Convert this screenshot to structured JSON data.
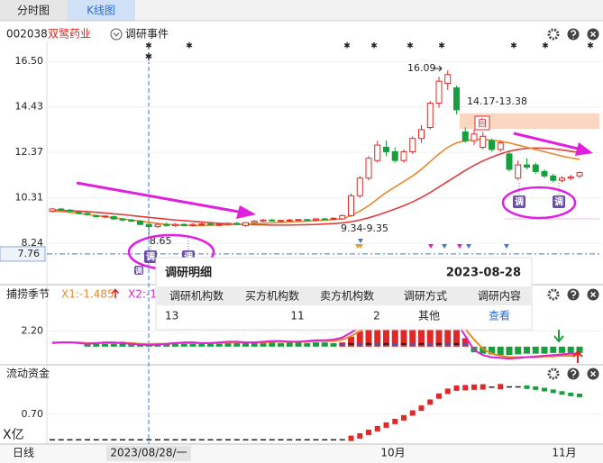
{
  "tabs": [
    "分时图",
    "K线图"
  ],
  "header": {
    "code": "002038",
    "name": "双鹭药业",
    "event_menu": "调研事件"
  },
  "main_chart": {
    "ylim": [
      7.43,
      17.24
    ],
    "yticks": [
      {
        "value": 16.5,
        "label": "16.50"
      },
      14.43,
      12.37,
      10.31,
      8.24
    ],
    "last_price": 7.76,
    "low_label": 8.65,
    "high_label": 16.09,
    "range_label_high": "14.17-13.38",
    "range_label_low": "9.34-9.35",
    "event_icon": "调",
    "self_icon": "自",
    "candles": [
      [
        9.7,
        9.85,
        9.65,
        9.8
      ],
      [
        9.8,
        9.85,
        9.7,
        9.75
      ],
      [
        9.75,
        9.8,
        9.65,
        9.7
      ],
      [
        9.65,
        9.7,
        9.55,
        9.6
      ],
      [
        9.6,
        9.65,
        9.5,
        9.55
      ],
      [
        9.5,
        9.55,
        9.42,
        9.45
      ],
      [
        9.45,
        9.5,
        9.38,
        9.48
      ],
      [
        9.45,
        9.5,
        9.3,
        9.35
      ],
      [
        9.35,
        9.4,
        9.22,
        9.3
      ],
      [
        9.3,
        9.35,
        9.2,
        9.25
      ],
      [
        9.25,
        9.3,
        9.05,
        9.1
      ],
      [
        9.1,
        9.2,
        8.65,
        9.0
      ],
      [
        9.0,
        9.15,
        8.95,
        9.1
      ],
      [
        9.1,
        9.2,
        9.0,
        9.05
      ],
      [
        9.05,
        9.15,
        9.0,
        9.1
      ],
      [
        9.1,
        9.15,
        9.02,
        9.05
      ],
      [
        9.05,
        9.15,
        9.0,
        9.1
      ],
      [
        9.1,
        9.2,
        9.05,
        9.12
      ],
      [
        9.12,
        9.18,
        9.05,
        9.08
      ],
      [
        9.08,
        9.15,
        9.02,
        9.1
      ],
      [
        9.1,
        9.2,
        9.05,
        9.15
      ],
      [
        9.15,
        9.22,
        9.08,
        9.1
      ],
      [
        9.05,
        9.2,
        9.0,
        9.18
      ],
      [
        9.18,
        9.3,
        9.12,
        9.25
      ],
      [
        9.25,
        9.35,
        9.2,
        9.3
      ],
      [
        9.3,
        9.35,
        9.22,
        9.26
      ],
      [
        9.26,
        9.3,
        9.2,
        9.28
      ],
      [
        9.28,
        9.36,
        9.22,
        9.3
      ],
      [
        9.3,
        9.34,
        9.25,
        9.32
      ],
      [
        9.32,
        9.36,
        9.26,
        9.3
      ],
      [
        9.3,
        9.38,
        9.25,
        9.35
      ],
      [
        9.35,
        9.4,
        9.3,
        9.34
      ],
      [
        9.34,
        9.42,
        9.3,
        9.38
      ],
      [
        9.35,
        9.55,
        9.3,
        9.5
      ],
      [
        9.5,
        10.5,
        9.45,
        10.4
      ],
      [
        10.4,
        11.3,
        10.3,
        11.2
      ],
      [
        11.2,
        12.2,
        11.1,
        12.1
      ],
      [
        12.0,
        12.9,
        11.9,
        12.7
      ],
      [
        12.6,
        12.9,
        12.2,
        12.4
      ],
      [
        12.4,
        12.6,
        11.9,
        12.0
      ],
      [
        12.0,
        12.5,
        11.9,
        12.4
      ],
      [
        12.4,
        13.1,
        12.3,
        13.0
      ],
      [
        13.0,
        13.6,
        12.8,
        13.4
      ],
      [
        13.5,
        14.7,
        13.4,
        14.6
      ],
      [
        14.6,
        15.8,
        14.4,
        15.6
      ],
      [
        15.5,
        16.09,
        15.2,
        15.9
      ],
      [
        15.3,
        15.4,
        14.1,
        14.3
      ],
      [
        13.3,
        13.5,
        12.8,
        12.9
      ],
      [
        12.9,
        13.4,
        12.7,
        13.2
      ],
      [
        12.6,
        13.3,
        12.5,
        13.1
      ],
      [
        12.9,
        13.0,
        12.4,
        12.5
      ],
      [
        12.5,
        12.9,
        12.4,
        12.8
      ],
      [
        12.3,
        12.4,
        11.5,
        11.6
      ],
      [
        11.2,
        12.0,
        11.1,
        11.8
      ],
      [
        11.8,
        12.1,
        11.6,
        11.7
      ],
      [
        11.8,
        11.9,
        11.4,
        11.5
      ],
      [
        11.5,
        11.6,
        11.2,
        11.3
      ],
      [
        11.3,
        11.4,
        11.0,
        11.1
      ],
      [
        11.1,
        11.3,
        11.0,
        11.2
      ],
      [
        11.2,
        11.35,
        11.1,
        11.25
      ],
      [
        11.3,
        11.5,
        11.2,
        11.45
      ]
    ],
    "ma_long": {
      "color": "#e03c3c",
      "values": [
        9.75,
        9.74,
        9.72,
        9.7,
        9.68,
        9.65,
        9.62,
        9.58,
        9.55,
        9.5,
        9.46,
        9.42,
        9.38,
        9.34,
        9.3,
        9.27,
        9.24,
        9.21,
        9.18,
        9.15,
        9.13,
        9.11,
        9.1,
        9.09,
        9.08,
        9.07,
        9.07,
        9.07,
        9.08,
        9.09,
        9.1,
        9.12,
        9.14,
        9.17,
        9.22,
        9.3,
        9.4,
        9.52,
        9.66,
        9.8,
        9.95,
        10.12,
        10.32,
        10.55,
        10.8,
        11.05,
        11.3,
        11.55,
        11.78,
        11.98,
        12.15,
        12.3,
        12.42,
        12.5,
        12.55,
        12.57,
        12.56,
        12.53,
        12.48,
        12.42,
        12.36
      ]
    },
    "ma_short": {
      "color": "#e8892a",
      "values": [
        9.7,
        9.68,
        9.65,
        9.6,
        9.55,
        9.5,
        9.45,
        9.4,
        9.35,
        9.3,
        9.25,
        9.2,
        9.15,
        9.1,
        9.08,
        9.06,
        9.05,
        9.05,
        9.06,
        9.07,
        9.08,
        9.1,
        9.12,
        9.14,
        9.15,
        9.17,
        9.19,
        9.21,
        9.23,
        9.25,
        9.27,
        9.29,
        9.32,
        9.35,
        9.5,
        9.7,
        9.95,
        10.25,
        10.55,
        10.8,
        11.05,
        11.3,
        11.6,
        11.95,
        12.3,
        12.6,
        12.8,
        12.9,
        12.95,
        12.95,
        12.92,
        12.88,
        12.8,
        12.7,
        12.6,
        12.5,
        12.4,
        12.3,
        12.2,
        12.12,
        12.05
      ]
    }
  },
  "popup": {
    "title": "调研明细",
    "date": "2023-08-28",
    "columns": [
      "调研机构数",
      "买方机构数",
      "卖方机构数",
      "调研方式",
      "调研内容"
    ],
    "row": [
      13,
      11,
      2,
      "其他",
      "查看"
    ]
  },
  "panel2": {
    "title": "捕捞季节",
    "x1_label": "X1:-1.485",
    "x2_label": "X2:-1",
    "ylim": [
      -2.2,
      6.0
    ],
    "yticks": [
      {
        "value": 2.2,
        "label": "2.20"
      }
    ],
    "red_bars": [
      null,
      null,
      null,
      null,
      null,
      null,
      null,
      null,
      null,
      null,
      null,
      null,
      null,
      null,
      null,
      null,
      null,
      null,
      null,
      null,
      null,
      null,
      null,
      null,
      null,
      null,
      null,
      null,
      null,
      null,
      null,
      null,
      null,
      0.6,
      1.4,
      2.2,
      3.0,
      3.3,
      3.4,
      3.3,
      3.3,
      3.4,
      3.4,
      3.3,
      3.2,
      3.0,
      2.4,
      1.2,
      null,
      null,
      null,
      null,
      null,
      null,
      null,
      null,
      null,
      null,
      null,
      null,
      null
    ],
    "green_bars": [
      null,
      null,
      null,
      null,
      0.5,
      0.6,
      0.5,
      0.6,
      0.7,
      0.6,
      0.5,
      0.4,
      0.5,
      0.5,
      0.6,
      0.5,
      0.5,
      0.6,
      0.5,
      0.5,
      0.6,
      0.6,
      0.5,
      0.5,
      0.6,
      0.6,
      0.5,
      0.6,
      0.6,
      0.5,
      0.6,
      0.6,
      0.5,
      null,
      null,
      null,
      null,
      null,
      null,
      null,
      null,
      null,
      null,
      null,
      null,
      null,
      null,
      null,
      -0.8,
      -1.0,
      -1.1,
      -1.2,
      -1.2,
      -1.1,
      -1.0,
      -1.0,
      -1.0,
      -0.9,
      -0.9,
      -0.9,
      -0.9
    ],
    "x1": {
      "color": "#e8892a",
      "values": [
        0.6,
        0.6,
        0.6,
        0.6,
        0.5,
        0.5,
        0.5,
        0.5,
        0.5,
        0.5,
        0.4,
        0.4,
        0.4,
        0.4,
        0.5,
        0.5,
        0.5,
        0.5,
        0.5,
        0.5,
        0.6,
        0.6,
        0.6,
        0.6,
        0.6,
        0.7,
        0.7,
        0.7,
        0.7,
        0.7,
        0.8,
        0.8,
        0.8,
        1.0,
        1.5,
        2.2,
        2.9,
        3.5,
        3.8,
        3.9,
        3.9,
        4.0,
        4.1,
        4.2,
        4.2,
        4.1,
        3.7,
        2.5,
        1.0,
        -0.3,
        -1.0,
        -1.3,
        -1.5,
        -1.5,
        -1.5,
        -1.5,
        -1.4,
        -1.4,
        -1.3,
        -1.3,
        -1.2
      ]
    },
    "x2": {
      "color": "#e020d0",
      "values": [
        0.5,
        0.6,
        0.6,
        0.5,
        0.4,
        0.5,
        0.6,
        0.6,
        0.5,
        0.4,
        0.3,
        0.2,
        0.3,
        0.4,
        0.5,
        0.6,
        0.6,
        0.5,
        0.5,
        0.6,
        0.7,
        0.7,
        0.6,
        0.6,
        0.7,
        0.8,
        0.8,
        0.7,
        0.7,
        0.8,
        0.9,
        0.9,
        1.0,
        1.3,
        2.0,
        2.8,
        3.5,
        4.0,
        4.2,
        4.1,
        4.0,
        4.2,
        4.4,
        4.5,
        4.5,
        4.3,
        3.5,
        1.5,
        -0.5,
        -1.2,
        -1.5,
        -1.6,
        -1.7,
        -1.6,
        -1.5,
        -1.4,
        -1.3,
        -1.2,
        -1.1,
        -1.0,
        -1.0
      ]
    }
  },
  "panel3": {
    "title": "流动资金",
    "unit": "X亿",
    "ylim": [
      -0.5,
      2.0
    ],
    "yticks": [
      {
        "value": 0.7,
        "label": "0.70"
      }
    ],
    "values": [
      -0.35,
      -0.35,
      -0.35,
      -0.35,
      -0.35,
      -0.35,
      -0.35,
      -0.35,
      -0.35,
      -0.35,
      -0.35,
      -0.35,
      -0.35,
      -0.35,
      -0.35,
      -0.35,
      -0.35,
      -0.35,
      -0.35,
      -0.35,
      -0.35,
      -0.35,
      -0.35,
      -0.35,
      -0.35,
      -0.35,
      -0.35,
      -0.35,
      -0.35,
      -0.35,
      -0.35,
      -0.35,
      -0.35,
      -0.35,
      -0.3,
      -0.2,
      -0.05,
      0.1,
      0.25,
      0.4,
      0.55,
      0.75,
      0.95,
      1.2,
      1.45,
      1.65,
      1.78,
      1.8,
      1.82,
      1.83,
      1.83,
      1.84,
      1.84,
      1.84,
      1.82,
      1.78,
      1.72,
      1.65,
      1.58,
      1.52,
      1.48
    ]
  },
  "x_axis": {
    "period": "日线",
    "cursor_date": "2023/08/28/一",
    "labels": [
      "10月",
      "11月"
    ]
  }
}
